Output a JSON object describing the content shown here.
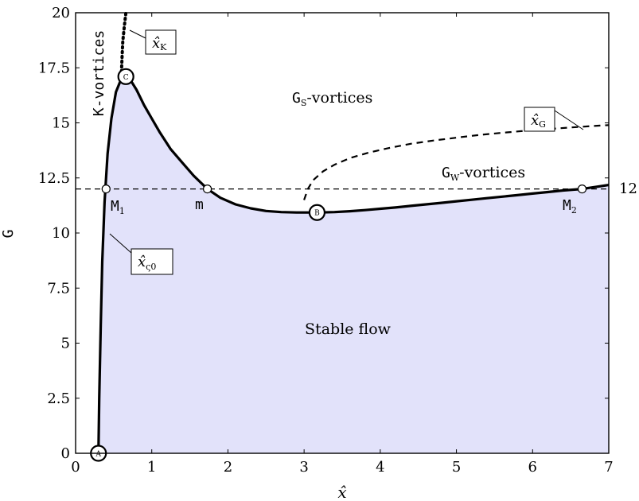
{
  "chart_data": {
    "type": "line",
    "xlabel": "x̂",
    "ylabel": "G",
    "xlim": [
      0,
      7
    ],
    "ylim": [
      0,
      20
    ],
    "x_ticks": [
      "0",
      "1",
      "2",
      "3",
      "4",
      "5",
      "6",
      "7"
    ],
    "y_ticks": [
      "0",
      "2.5",
      "5",
      "7.5",
      "10",
      "12.5",
      "15",
      "17.5",
      "20"
    ],
    "fill_color": "#e2e2fa",
    "neutral_curve": {
      "x": [
        0.3,
        0.31,
        0.33,
        0.35,
        0.38,
        0.42,
        0.47,
        0.53,
        0.6,
        0.66,
        0.72,
        0.8,
        0.9,
        1.0,
        1.1,
        1.25,
        1.4,
        1.55,
        1.73,
        1.9,
        2.1,
        2.3,
        2.5,
        2.7,
        2.9,
        3.1,
        3.2,
        3.4,
        3.6,
        3.8,
        4.0,
        4.2,
        4.4,
        4.6,
        4.8,
        5.0,
        5.2,
        5.4,
        5.6,
        5.8,
        6.0,
        6.2,
        6.4,
        6.65,
        6.8,
        7.0
      ],
      "y": [
        0,
        2.5,
        5.8,
        8.7,
        11.4,
        13.6,
        15.2,
        16.4,
        17.0,
        17.1,
        16.95,
        16.5,
        15.8,
        15.2,
        14.6,
        13.8,
        13.2,
        12.6,
        12.0,
        11.6,
        11.3,
        11.12,
        11.0,
        10.95,
        10.93,
        10.93,
        10.93,
        10.95,
        10.99,
        11.04,
        11.1,
        11.16,
        11.23,
        11.3,
        11.37,
        11.44,
        11.51,
        11.58,
        11.65,
        11.72,
        11.79,
        11.86,
        11.93,
        12.0,
        12.08,
        12.18
      ]
    },
    "kvortex_curve": {
      "x": [
        0.6,
        0.61,
        0.62,
        0.64,
        0.66
      ],
      "y": [
        17.1,
        18.0,
        18.7,
        19.4,
        20.0
      ]
    },
    "gortex_curve": {
      "x": [
        3.0,
        3.05,
        3.12,
        3.25,
        3.4,
        3.6,
        3.85,
        4.1,
        4.4,
        4.7,
        5.0,
        5.3,
        5.6,
        5.9,
        6.2,
        6.5,
        6.8,
        7.0
      ],
      "y": [
        11.5,
        12.0,
        12.4,
        12.8,
        13.1,
        13.4,
        13.65,
        13.85,
        14.05,
        14.2,
        14.33,
        14.45,
        14.55,
        14.64,
        14.72,
        14.79,
        14.86,
        14.9
      ]
    },
    "reference_line": {
      "y": 12,
      "label": "12"
    },
    "points": [
      {
        "name": "M1",
        "x": 0.4,
        "y": 12
      },
      {
        "name": "m",
        "x": 1.73,
        "y": 12
      },
      {
        "name": "M2",
        "x": 6.65,
        "y": 12
      }
    ],
    "markers": [
      {
        "letter": "A",
        "x": 0.3,
        "y": 0
      },
      {
        "letter": "C",
        "x": 0.66,
        "y": 17.1
      },
      {
        "letter": "B",
        "x": 3.17,
        "y": 10.93
      }
    ],
    "regions": {
      "kvortices": "K-vortices",
      "gs_prefix": "G",
      "gs_sub": "S",
      "gs_suffix": "-vortices",
      "gw_prefix": "G",
      "gw_sub": "W",
      "gw_suffix": "-vortices",
      "stable": "Stable flow"
    },
    "point_labels": {
      "m1_main": "M",
      "m1_sub": "1",
      "m": "m",
      "m2_main": "M",
      "m2_sub": "2"
    },
    "annotations": {
      "xk_main": "x̂",
      "xk_sub": "K",
      "xg_main": "x̂",
      "xg_sub": "G",
      "xs_main": "x̂",
      "xs_sub": "ς0"
    }
  }
}
